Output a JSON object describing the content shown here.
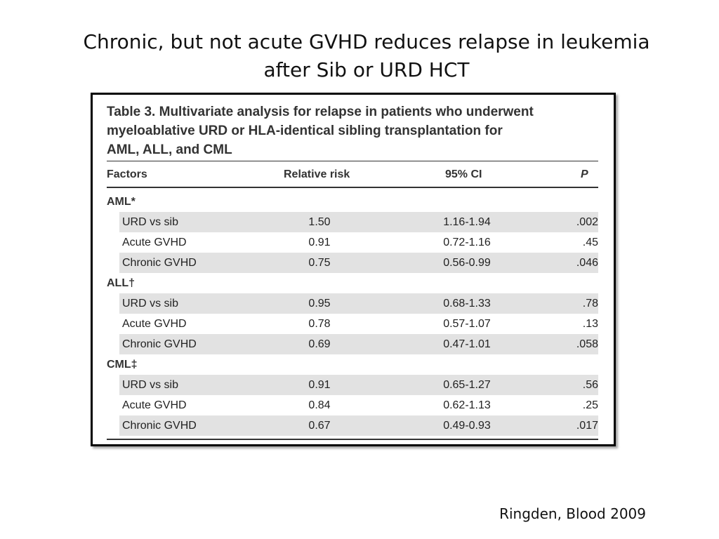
{
  "slide": {
    "title_line1": "Chronic, but not acute GVHD reduces relapse in leukemia",
    "title_line2": "after Sib or URD HCT",
    "citation": "Ringden, Blood 2009"
  },
  "table": {
    "caption_line1": "Table 3. Multivariate analysis for relapse in patients who underwent",
    "caption_line2": "myeloablative URD or HLA-identical sibling transplantation for",
    "caption_line3": "AML, ALL, and CML",
    "headers": {
      "factors": "Factors",
      "relative_risk": "Relative risk",
      "ci": "95% CI",
      "p": "P"
    },
    "groups": [
      {
        "label": "AML*",
        "rows": [
          {
            "factor": "URD vs sib",
            "rr": "1.50",
            "ci": "1.16-1.94",
            "p": ".002"
          },
          {
            "factor": "Acute GVHD",
            "rr": "0.91",
            "ci": "0.72-1.16",
            "p": ".45"
          },
          {
            "factor": "Chronic GVHD",
            "rr": "0.75",
            "ci": "0.56-0.99",
            "p": ".046"
          }
        ]
      },
      {
        "label": "ALL†",
        "rows": [
          {
            "factor": "URD vs sib",
            "rr": "0.95",
            "ci": "0.68-1.33",
            "p": ".78"
          },
          {
            "factor": "Acute GVHD",
            "rr": "0.78",
            "ci": "0.57-1.07",
            "p": ".13"
          },
          {
            "factor": "Chronic GVHD",
            "rr": "0.69",
            "ci": "0.47-1.01",
            "p": ".058"
          }
        ]
      },
      {
        "label": "CML‡",
        "rows": [
          {
            "factor": "URD vs sib",
            "rr": "0.91",
            "ci": "0.65-1.27",
            "p": ".56"
          },
          {
            "factor": "Acute GVHD",
            "rr": "0.84",
            "ci": "0.62-1.13",
            "p": ".25"
          },
          {
            "factor": "Chronic GVHD",
            "rr": "0.67",
            "ci": "0.49-0.93",
            "p": ".017"
          }
        ]
      }
    ]
  }
}
